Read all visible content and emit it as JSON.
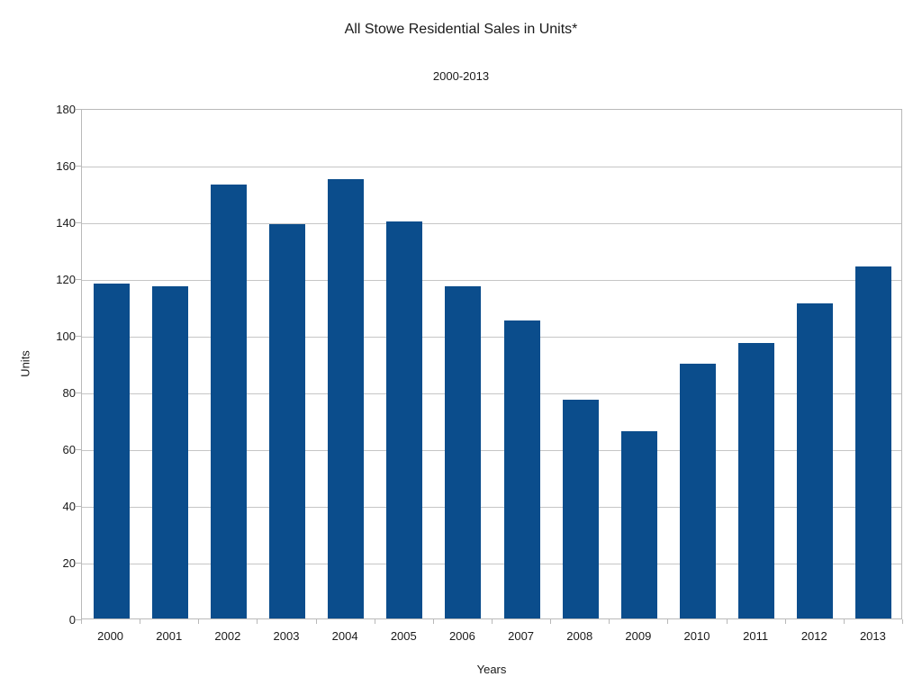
{
  "chart_data": {
    "type": "bar",
    "title": "All Stowe Residential Sales in Units*",
    "subtitle": "2000-2013",
    "categories": [
      "2000",
      "2001",
      "2002",
      "2003",
      "2004",
      "2005",
      "2006",
      "2007",
      "2008",
      "2009",
      "2010",
      "2011",
      "2012",
      "2013"
    ],
    "values": [
      118,
      117,
      153,
      139,
      155,
      140,
      117,
      105,
      77,
      66,
      90,
      97,
      111,
      124
    ],
    "xlabel": "Years",
    "ylabel": "Units",
    "ylim": [
      0,
      180
    ],
    "ytick_step": 20,
    "ytick_labels": [
      "0",
      "20",
      "40",
      "60",
      "80",
      "100",
      "120",
      "140",
      "160",
      "180"
    ],
    "grid": "horizontal",
    "legend_position": "none",
    "bar_color": "#0b4d8c",
    "gridline_color": "#c6c6c6",
    "axis_color": "#b9b9b9",
    "text_color": "#1a1a1a",
    "background_color": "#ffffff"
  }
}
